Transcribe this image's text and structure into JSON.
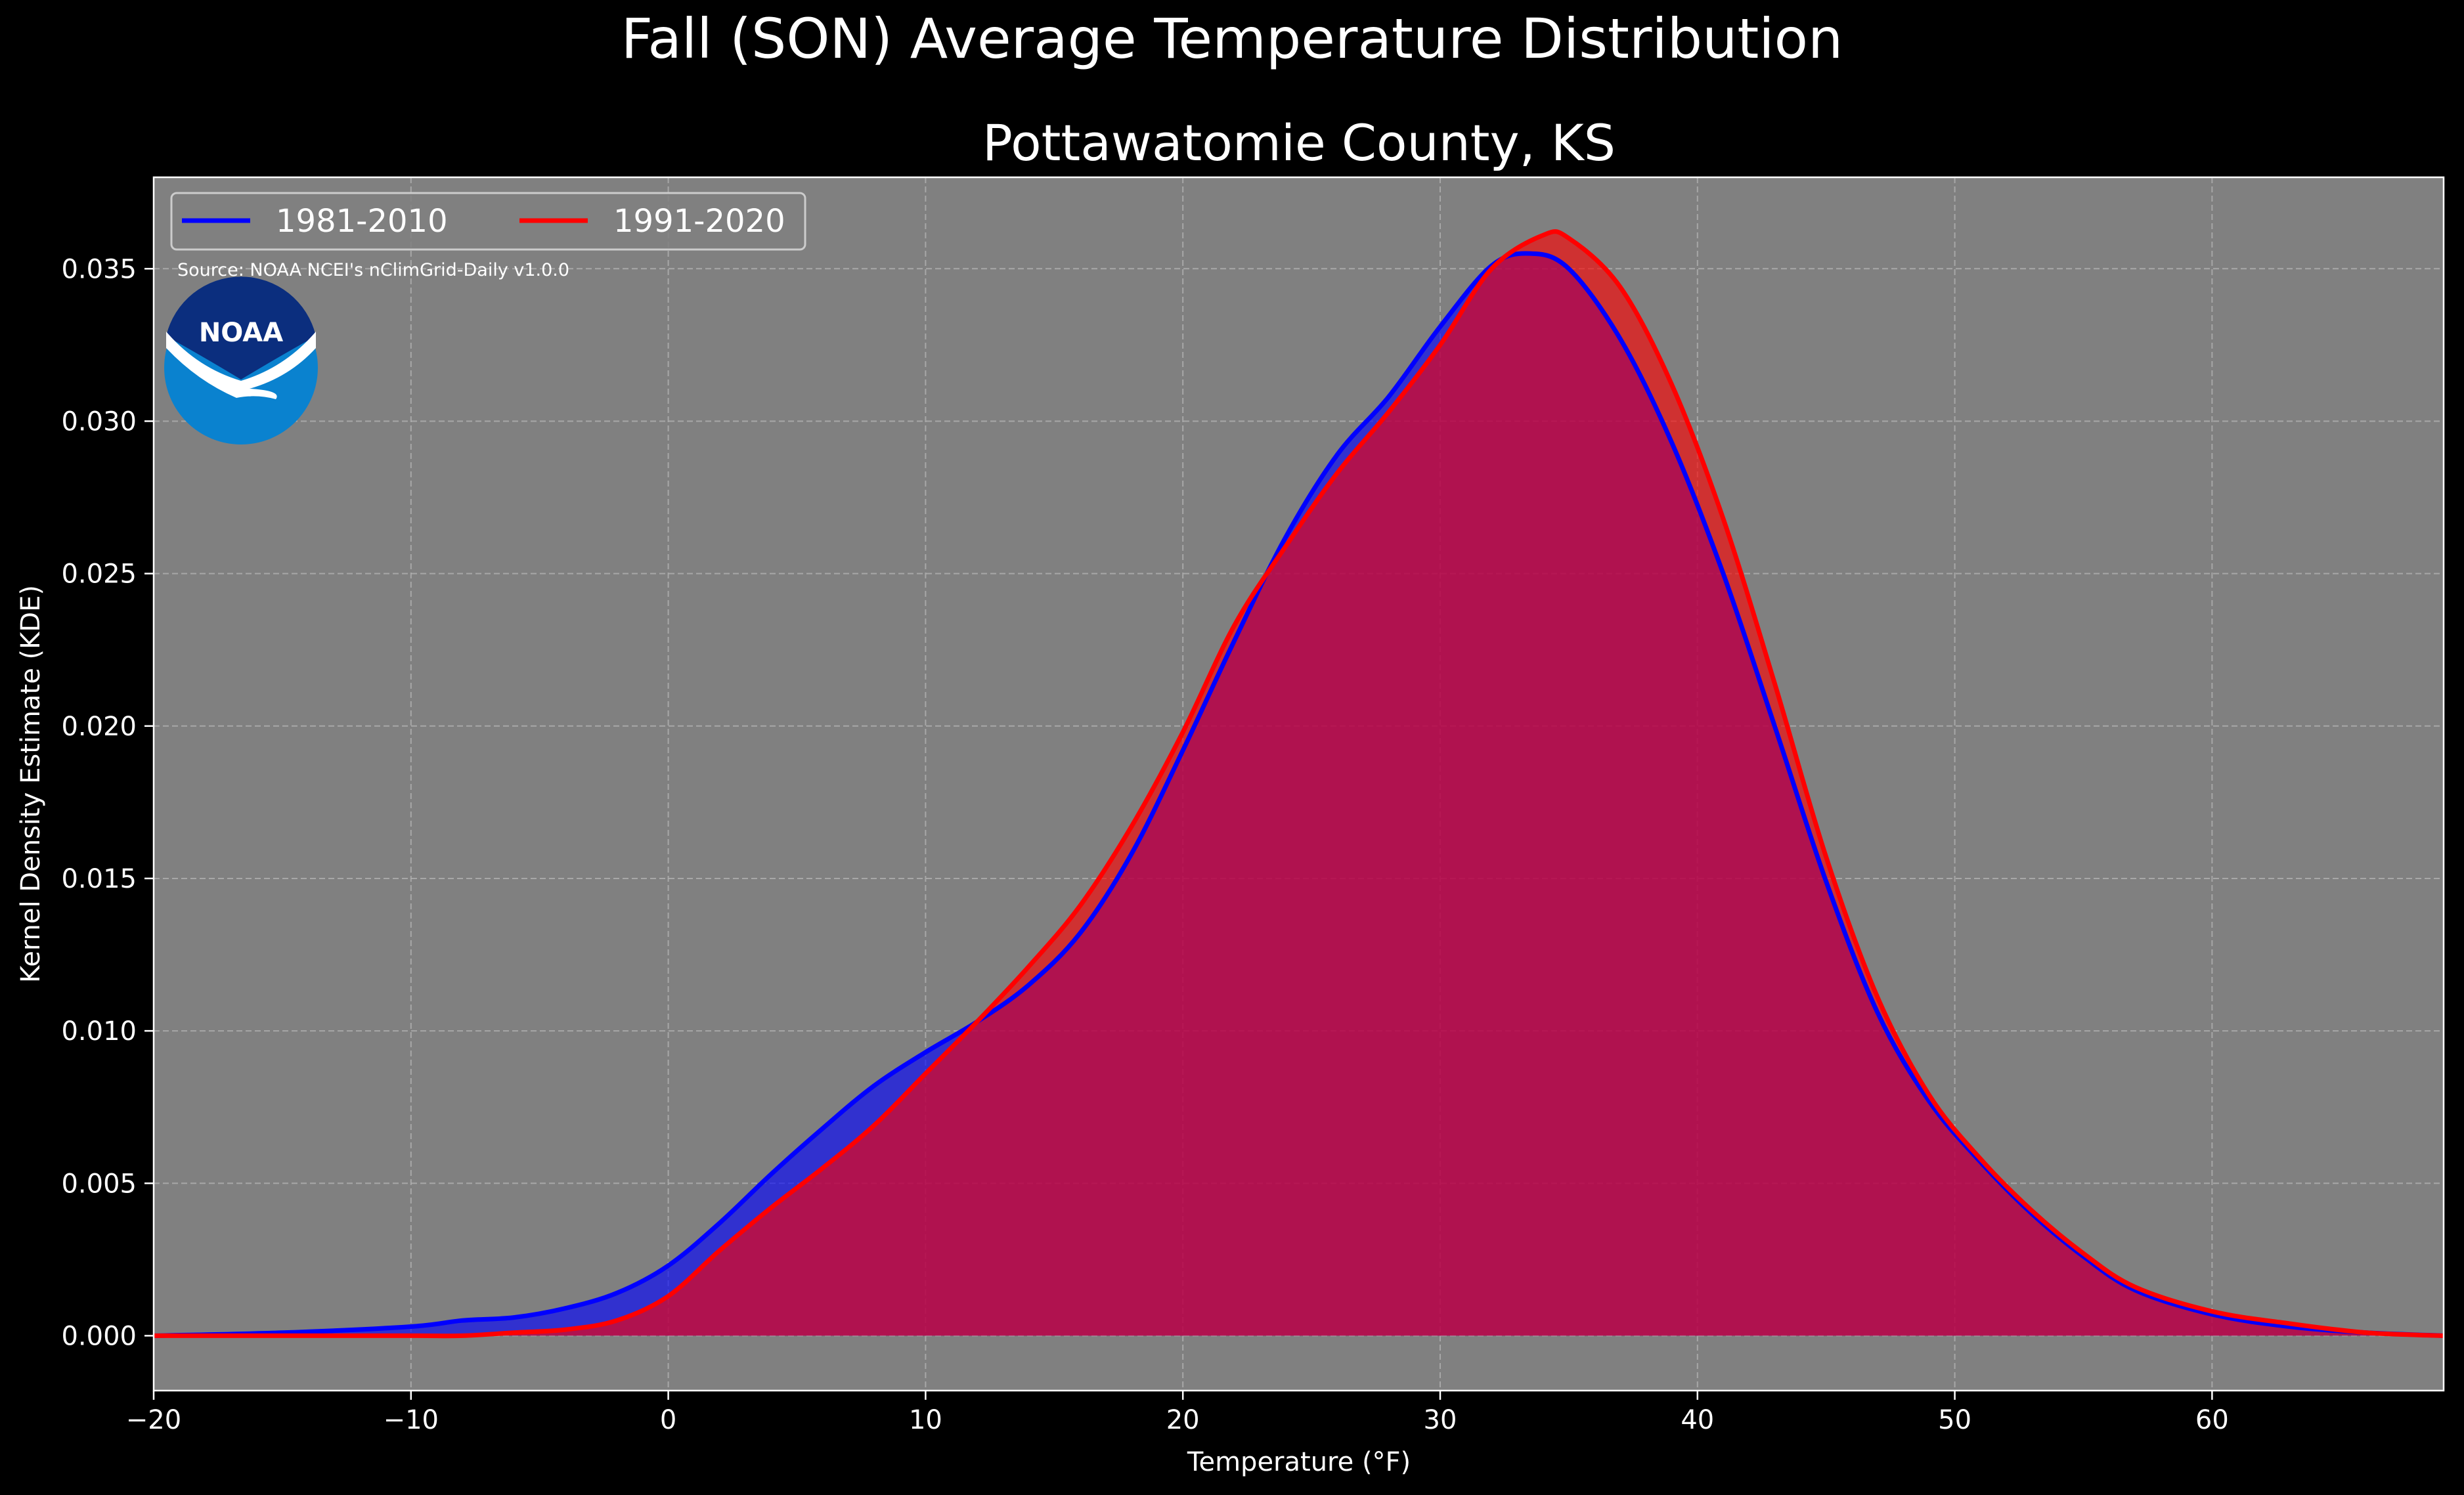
{
  "chart_data": {
    "type": "area",
    "title": "Fall (SON) Average Temperature Distribution",
    "subtitle": "Pottawatomie County, KS",
    "xlabel": "Temperature (°F)",
    "ylabel": "Kernel Density Estimate (KDE)",
    "xlim": [
      -20,
      69
    ],
    "ylim": [
      -0.0018,
      0.038
    ],
    "x_ticks": [
      -20,
      -10,
      0,
      10,
      20,
      30,
      40,
      50,
      60
    ],
    "x_tick_labels": [
      "−20",
      "−10",
      "0",
      "10",
      "20",
      "30",
      "40",
      "50",
      "60"
    ],
    "y_ticks": [
      0.0,
      0.005,
      0.01,
      0.015,
      0.02,
      0.025,
      0.03,
      0.035
    ],
    "y_tick_labels": [
      "0.000",
      "0.005",
      "0.010",
      "0.015",
      "0.020",
      "0.025",
      "0.030",
      "0.035"
    ],
    "grid": true,
    "legend_position": "top-left",
    "source_note": "Source: NOAA NCEI's nClimGrid-Daily v1.0.0",
    "logo_text": "NOAA",
    "series": [
      {
        "name": "1981-2010",
        "color": "#0000ff",
        "x": [
          -20,
          -15,
          -10,
          -8,
          -6,
          -4,
          -2,
          0,
          2,
          4,
          6,
          8,
          10,
          12,
          14,
          16,
          18,
          20,
          22,
          24,
          26,
          28,
          30,
          32,
          33.5,
          35,
          37,
          39,
          41,
          43,
          45,
          47,
          49,
          51,
          53,
          55,
          57,
          60,
          63,
          66,
          69
        ],
        "y": [
          0.0,
          0.0001,
          0.0003,
          0.0005,
          0.0006,
          0.0009,
          0.0014,
          0.0023,
          0.0037,
          0.0053,
          0.0068,
          0.0082,
          0.0093,
          0.0103,
          0.0115,
          0.0132,
          0.0158,
          0.0192,
          0.0228,
          0.0262,
          0.0289,
          0.0308,
          0.0331,
          0.0351,
          0.0355,
          0.035,
          0.0327,
          0.0293,
          0.025,
          0.02,
          0.0149,
          0.0106,
          0.0077,
          0.0057,
          0.004,
          0.0026,
          0.0015,
          0.0007,
          0.0003,
          0.0001,
          0.0
        ]
      },
      {
        "name": "1991-2020",
        "color": "#ff0000",
        "x": [
          -20,
          -15,
          -10,
          -8,
          -6,
          -4,
          -2,
          0,
          2,
          4,
          6,
          8,
          10,
          12,
          14,
          16,
          18,
          20,
          22,
          24,
          26,
          28,
          30,
          32,
          34,
          35,
          37,
          39,
          41,
          43,
          45,
          47,
          49,
          51,
          53,
          55,
          57,
          60,
          63,
          66,
          69
        ],
        "y": [
          0.0,
          0.0,
          0.0,
          0.0,
          0.0001,
          0.0002,
          0.0005,
          0.0013,
          0.0028,
          0.0042,
          0.0055,
          0.0069,
          0.0086,
          0.0103,
          0.0121,
          0.0141,
          0.0167,
          0.0198,
          0.0233,
          0.0259,
          0.0283,
          0.0303,
          0.0325,
          0.035,
          0.0361,
          0.036,
          0.0344,
          0.0312,
          0.0268,
          0.0214,
          0.0157,
          0.0111,
          0.0079,
          0.0058,
          0.0041,
          0.0027,
          0.0016,
          0.0008,
          0.0004,
          0.0001,
          0.0
        ]
      }
    ]
  }
}
